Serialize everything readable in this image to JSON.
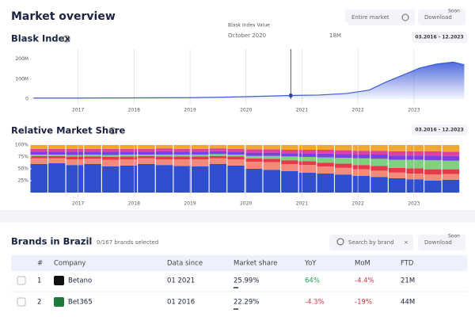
{
  "header": {
    "title": "Market overview",
    "filter": "Entire market",
    "download": "Download",
    "badge": "Soon"
  },
  "tooltip": {
    "title": "Blask Index Value",
    "date": "October 2020",
    "value": "18M"
  },
  "chart_data": [
    {
      "type": "line",
      "title": "Blask Index",
      "date_range": "03.2016 - 12.2023",
      "color": "#3d5bd9",
      "grid": true,
      "x": [
        2016.2,
        2017,
        2018,
        2019,
        2019.5,
        2020,
        2020.8,
        2021.3,
        2021.8,
        2022.2,
        2022.5,
        2022.8,
        2023.1,
        2023.4,
        2023.7,
        2023.9
      ],
      "values": [
        5000000,
        5000000,
        6000000,
        7000000,
        9000000,
        12000000,
        18000000,
        20000000,
        28000000,
        45000000,
        85000000,
        120000000,
        155000000,
        175000000,
        185000000,
        172000000
      ],
      "xlim": [
        2016.17,
        2023.95
      ],
      "xticks": [
        2017,
        2018,
        2019,
        2020,
        2021,
        2022,
        2023
      ],
      "ylim": [
        0,
        250000000
      ],
      "yticks": [
        0,
        {
          "value": 100000000,
          "label": "100M"
        },
        {
          "value": 200000000,
          "label": "200M"
        }
      ]
    },
    {
      "type": "stacked_bar",
      "title": "Relative Market Share",
      "date_range": "03.2016 - 12.2023",
      "grid": true,
      "x": [
        2016.3,
        2016.62,
        2016.94,
        2017.26,
        2017.58,
        2017.9,
        2018.22,
        2018.54,
        2018.86,
        2019.18,
        2019.5,
        2019.82,
        2020.14,
        2020.46,
        2020.78,
        2021.1,
        2021.42,
        2021.74,
        2022.06,
        2022.38,
        2022.7,
        2023.02,
        2023.34,
        2023.66
      ],
      "xlim": [
        2016.17,
        2023.95
      ],
      "xticks": [
        2017,
        2018,
        2019,
        2020,
        2021,
        2022,
        2023
      ],
      "ylim": [
        0,
        100
      ],
      "yticks": [
        {
          "value": 25,
          "label": "25%"
        },
        {
          "value": 50,
          "label": "50%"
        },
        {
          "value": 75,
          "label": "75%"
        },
        {
          "value": 100,
          "label": "100%"
        }
      ],
      "series": [
        {
          "color": "#2f4fd0",
          "values": [
            60,
            62,
            58,
            60,
            55,
            57,
            60,
            58,
            56,
            55,
            60,
            57,
            50,
            48,
            45,
            42,
            40,
            38,
            35,
            33,
            30,
            28,
            25,
            27
          ]
        },
        {
          "color": "#f28b7a",
          "values": [
            12,
            10,
            12,
            11,
            14,
            13,
            12,
            12,
            14,
            15,
            12,
            13,
            15,
            16,
            15,
            16,
            15,
            14,
            14,
            13,
            12,
            12,
            13,
            12
          ]
        },
        {
          "color": "#e6394a",
          "values": [
            5,
            5,
            6,
            5,
            6,
            6,
            5,
            6,
            6,
            6,
            5,
            6,
            7,
            7,
            8,
            8,
            8,
            9,
            9,
            10,
            10,
            11,
            11,
            10
          ]
        },
        {
          "color": "#7fd17f",
          "values": [
            3,
            3,
            3,
            4,
            4,
            4,
            3,
            4,
            4,
            4,
            4,
            4,
            5,
            6,
            8,
            9,
            11,
            12,
            14,
            15,
            17,
            18,
            19,
            18
          ]
        },
        {
          "color": "#7b3fe4",
          "values": [
            6,
            6,
            7,
            6,
            7,
            6,
            6,
            7,
            6,
            6,
            6,
            6,
            7,
            7,
            7,
            8,
            8,
            8,
            8,
            9,
            9,
            9,
            10,
            10
          ]
        },
        {
          "color": "#e040a0",
          "values": [
            6,
            6,
            6,
            6,
            6,
            6,
            6,
            6,
            6,
            6,
            6,
            6,
            7,
            7,
            7,
            7,
            8,
            8,
            8,
            8,
            9,
            9,
            9,
            9
          ]
        },
        {
          "color": "#f0a830",
          "values": [
            8,
            8,
            8,
            8,
            8,
            8,
            8,
            7,
            8,
            8,
            7,
            8,
            9,
            9,
            10,
            10,
            10,
            11,
            12,
            12,
            13,
            13,
            13,
            14
          ]
        }
      ]
    }
  ],
  "brands": {
    "title": "Brands in Brazil",
    "selected": "0/167 brands selected",
    "search": "Search by brand",
    "download": "Download",
    "badge": "Soon",
    "table": {
      "columns": [
        "#",
        "Company",
        "Data since",
        "Market share",
        "YoY",
        "MoM",
        "FTD"
      ],
      "rows": [
        [
          "1",
          "Betano",
          "01 2021",
          "25.99%",
          "64%",
          "-4.4%",
          "21M"
        ],
        [
          "2",
          "Bet365",
          "01 2016",
          "22.29%",
          "-4.3%",
          "-19%",
          "44M"
        ]
      ]
    }
  }
}
